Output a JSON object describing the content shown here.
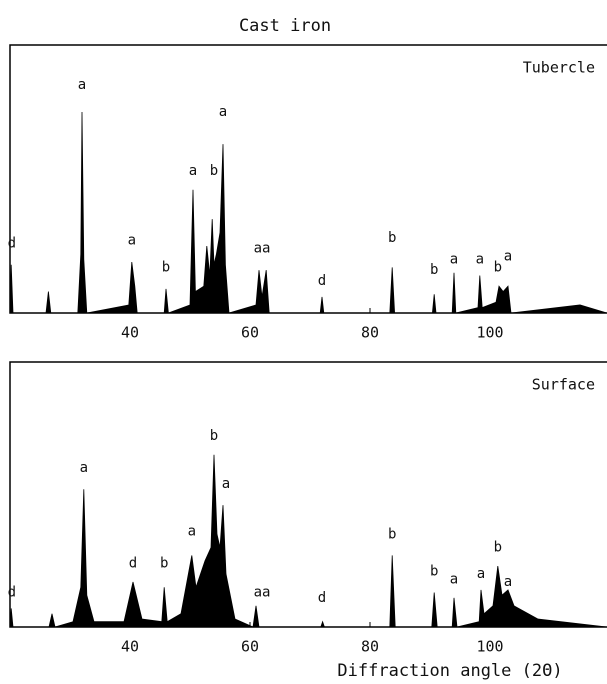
{
  "chart_data": [
    {
      "type": "area",
      "title": "Cast iron",
      "label": "Tubercle",
      "color": "#000000",
      "x": [
        20,
        20.2,
        20.5,
        26,
        26.4,
        26.8,
        31.3,
        31.8,
        32.0,
        32.3,
        32.8,
        39.8,
        40.3,
        40.8,
        41.2,
        45.7,
        46.0,
        46.4,
        50.0,
        50.5,
        50.9,
        52.3,
        52.8,
        53.3,
        53.7,
        54.0,
        54.4,
        55.0,
        55.5,
        55.9,
        56.5,
        61.0,
        61.5,
        62.0,
        62.7,
        63.2,
        71.7,
        72.0,
        72.3,
        83.3,
        83.7,
        84.1,
        90.4,
        90.7,
        91.0,
        93.7,
        94.0,
        94.3,
        98.0,
        98.3,
        98.7,
        101.0,
        101.5,
        102.2,
        103.0,
        103.5,
        115,
        119.5
      ],
      "values": [
        0,
        18,
        0,
        0,
        8,
        0,
        0,
        22,
        75,
        20,
        0,
        3,
        19,
        10,
        0,
        0,
        9,
        0,
        3,
        46,
        8,
        10,
        25,
        14,
        35,
        18,
        22,
        30,
        63,
        18,
        0,
        3,
        16,
        6,
        16,
        0,
        0,
        6,
        0,
        0,
        17,
        0,
        0,
        7,
        0,
        0,
        15,
        0,
        2,
        14,
        2,
        4,
        10,
        8,
        10,
        0,
        3,
        0
      ],
      "xlim": [
        20,
        119.5
      ],
      "ylim": [
        0,
        100
      ],
      "xticks": [
        40,
        60,
        80,
        100
      ],
      "annotations": [
        {
          "text": "d",
          "x": 20.3,
          "y": 26
        },
        {
          "text": "a",
          "x": 32,
          "y": 85
        },
        {
          "text": "a",
          "x": 40.3,
          "y": 27
        },
        {
          "text": "b",
          "x": 46,
          "y": 17
        },
        {
          "text": "a",
          "x": 50.5,
          "y": 53
        },
        {
          "text": "b",
          "x": 54,
          "y": 53
        },
        {
          "text": "a",
          "x": 55.5,
          "y": 75
        },
        {
          "text": "aa",
          "x": 62,
          "y": 24
        },
        {
          "text": "d",
          "x": 72,
          "y": 12
        },
        {
          "text": "b",
          "x": 83.7,
          "y": 28
        },
        {
          "text": "b",
          "x": 90.7,
          "y": 16
        },
        {
          "text": "a",
          "x": 94,
          "y": 20
        },
        {
          "text": "a",
          "x": 98.3,
          "y": 20
        },
        {
          "text": "b",
          "x": 101.3,
          "y": 17
        },
        {
          "text": "a",
          "x": 103,
          "y": 21
        }
      ]
    },
    {
      "type": "area",
      "label": "Surface",
      "color": "#000000",
      "xlabel": "Diffraction angle (2Θ)",
      "x": [
        20,
        20.2,
        20.5,
        26.5,
        27,
        27.5,
        30.5,
        31.8,
        32.3,
        32.8,
        34,
        39,
        40.5,
        42,
        45.3,
        45.7,
        46.2,
        48.5,
        50.3,
        51,
        52.5,
        53.5,
        54.0,
        54.5,
        55.0,
        55.5,
        56,
        57.5,
        60.5,
        61,
        61.5,
        71.8,
        72.1,
        72.4,
        83.3,
        83.7,
        84.2,
        90.3,
        90.7,
        91.2,
        93.7,
        94,
        94.5,
        98.2,
        98.5,
        99,
        100.5,
        101.3,
        102,
        103,
        104,
        108,
        119.5
      ],
      "values": [
        0,
        7,
        0,
        0,
        5,
        0,
        2,
        15,
        52,
        12,
        2,
        2,
        17,
        3,
        2,
        15,
        2,
        5,
        27,
        15,
        25,
        30,
        65,
        35,
        30,
        46,
        20,
        3,
        0,
        8,
        0,
        0,
        2,
        0,
        0,
        27,
        0,
        0,
        13,
        0,
        0,
        11,
        0,
        2,
        14,
        5,
        8,
        23,
        12,
        14,
        8,
        3,
        0
      ],
      "xlim": [
        20,
        119.5
      ],
      "ylim": [
        0,
        100
      ],
      "xticks": [
        40,
        60,
        80,
        100
      ],
      "annotations": [
        {
          "text": "d",
          "x": 20.3,
          "y": 13
        },
        {
          "text": "a",
          "x": 32.3,
          "y": 60
        },
        {
          "text": "d",
          "x": 40.5,
          "y": 24
        },
        {
          "text": "b",
          "x": 45.7,
          "y": 24
        },
        {
          "text": "a",
          "x": 50.3,
          "y": 36
        },
        {
          "text": "b",
          "x": 54,
          "y": 72
        },
        {
          "text": "a",
          "x": 56,
          "y": 54
        },
        {
          "text": "aa",
          "x": 62,
          "y": 13
        },
        {
          "text": "d",
          "x": 72,
          "y": 11
        },
        {
          "text": "b",
          "x": 83.7,
          "y": 35
        },
        {
          "text": "b",
          "x": 90.7,
          "y": 21
        },
        {
          "text": "a",
          "x": 94,
          "y": 18
        },
        {
          "text": "a",
          "x": 98.5,
          "y": 20
        },
        {
          "text": "b",
          "x": 101.3,
          "y": 30
        },
        {
          "text": "a",
          "x": 103,
          "y": 17
        }
      ]
    }
  ]
}
